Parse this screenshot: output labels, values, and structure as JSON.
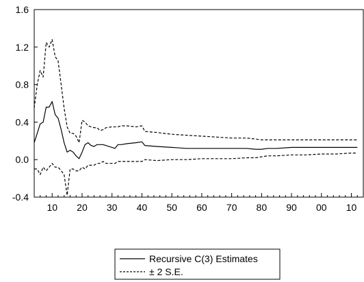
{
  "chart_data": {
    "type": "line",
    "title": "",
    "xlabel": "",
    "ylabel": "",
    "ylim": [
      -0.4,
      1.6
    ],
    "yticks": [
      "-0.4",
      "0.0",
      "0.4",
      "0.8",
      "1.2",
      "1.6"
    ],
    "xticks": [
      "10",
      "20",
      "30",
      "40",
      "50",
      "60",
      "70",
      "80",
      "90",
      "00",
      "10"
    ],
    "grid": false,
    "legend": {
      "placement": "bottom-center",
      "entries": [
        {
          "label": "Recursive C(3) Estimates",
          "style": "solid"
        },
        {
          "label": "± 2 S.E.",
          "style": "dashed"
        }
      ]
    },
    "series": [
      {
        "name": "Recursive C(3) Estimates",
        "style": "solid",
        "color": "#000000",
        "x": [
          4,
          5,
          6,
          7,
          8,
          9,
          10,
          11,
          12,
          13,
          14,
          15,
          16,
          17,
          18,
          19,
          20,
          21,
          22,
          23,
          24,
          25,
          26,
          27,
          28,
          30,
          31,
          32,
          33,
          35,
          38,
          40,
          41,
          45,
          50,
          55,
          60,
          65,
          70,
          75,
          78,
          80,
          82,
          85,
          90,
          95,
          100,
          105,
          110,
          112
        ],
        "values": [
          0.18,
          0.28,
          0.38,
          0.4,
          0.56,
          0.56,
          0.62,
          0.48,
          0.44,
          0.32,
          0.18,
          0.08,
          0.1,
          0.08,
          0.04,
          0.01,
          0.08,
          0.16,
          0.18,
          0.15,
          0.14,
          0.16,
          0.16,
          0.16,
          0.15,
          0.13,
          0.12,
          0.16,
          0.16,
          0.17,
          0.18,
          0.19,
          0.15,
          0.14,
          0.13,
          0.12,
          0.12,
          0.12,
          0.12,
          0.12,
          0.11,
          0.11,
          0.12,
          0.12,
          0.13,
          0.13,
          0.13,
          0.13,
          0.13,
          0.13
        ]
      },
      {
        "name": "+ 2 S.E.",
        "style": "dashed",
        "color": "#000000",
        "x": [
          4,
          5,
          6,
          7,
          8,
          9,
          10,
          11,
          12,
          13,
          14,
          15,
          16,
          17,
          18,
          19,
          20,
          21,
          22,
          23,
          24,
          25,
          26,
          27,
          28,
          30,
          31,
          32,
          33,
          35,
          38,
          40,
          41,
          45,
          50,
          55,
          60,
          65,
          70,
          75,
          78,
          80,
          82,
          85,
          90,
          95,
          100,
          105,
          110,
          112
        ],
        "values": [
          0.55,
          0.8,
          0.95,
          0.88,
          1.25,
          1.2,
          1.28,
          1.1,
          1.05,
          0.8,
          0.55,
          0.35,
          0.28,
          0.28,
          0.25,
          0.18,
          0.42,
          0.4,
          0.36,
          0.35,
          0.34,
          0.34,
          0.31,
          0.32,
          0.34,
          0.35,
          0.35,
          0.35,
          0.36,
          0.36,
          0.35,
          0.36,
          0.3,
          0.29,
          0.27,
          0.26,
          0.25,
          0.24,
          0.23,
          0.23,
          0.22,
          0.21,
          0.21,
          0.21,
          0.21,
          0.21,
          0.21,
          0.21,
          0.21,
          0.21
        ]
      },
      {
        "name": "- 2 S.E.",
        "style": "dashed",
        "color": "#000000",
        "x": [
          4,
          5,
          6,
          7,
          8,
          9,
          10,
          11,
          12,
          13,
          14,
          15,
          16,
          17,
          18,
          19,
          20,
          21,
          22,
          23,
          24,
          25,
          26,
          27,
          28,
          30,
          31,
          32,
          33,
          35,
          38,
          40,
          41,
          45,
          50,
          55,
          60,
          65,
          70,
          75,
          78,
          80,
          82,
          85,
          90,
          95,
          100,
          105,
          110,
          112
        ],
        "values": [
          -0.1,
          -0.1,
          -0.16,
          -0.08,
          -0.12,
          -0.08,
          -0.04,
          -0.08,
          -0.08,
          -0.12,
          -0.16,
          -0.38,
          -0.1,
          -0.1,
          -0.12,
          -0.12,
          -0.08,
          -0.1,
          -0.06,
          -0.06,
          -0.06,
          -0.04,
          -0.04,
          -0.02,
          -0.04,
          -0.04,
          -0.04,
          -0.02,
          -0.02,
          -0.02,
          -0.02,
          -0.02,
          0.0,
          -0.01,
          0.0,
          0.0,
          0.01,
          0.01,
          0.01,
          0.02,
          0.02,
          0.03,
          0.04,
          0.04,
          0.05,
          0.05,
          0.06,
          0.06,
          0.07,
          0.07
        ]
      }
    ]
  }
}
